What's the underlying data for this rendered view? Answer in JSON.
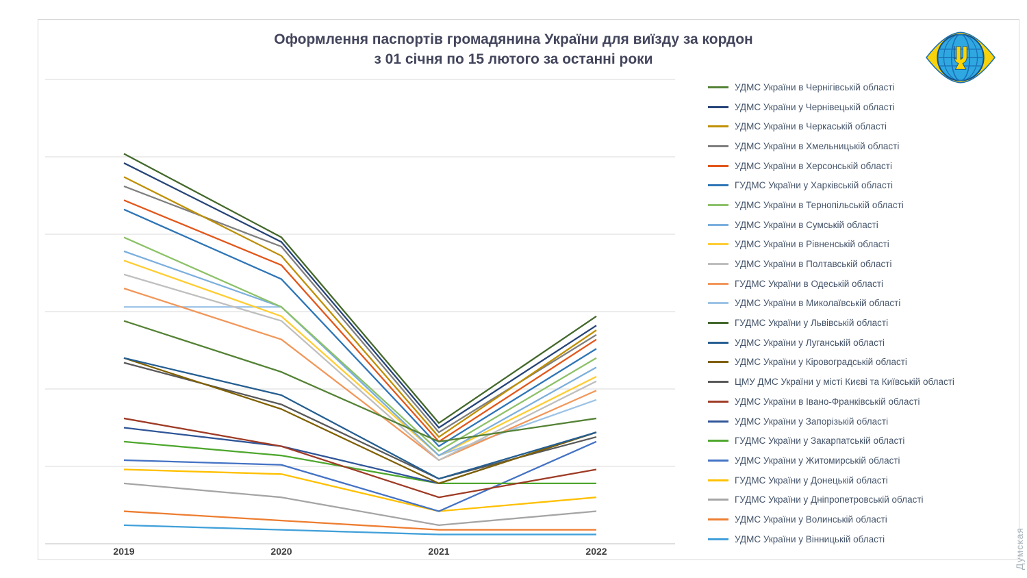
{
  "watermark": "Думская",
  "logo": {
    "description": "emblem of the State Migration Service of Ukraine",
    "colors": {
      "globe": "#2fa8e1",
      "ring": "#f8d20a",
      "lines": "#1b6fb5",
      "trident": "#ffd500"
    }
  },
  "chart_data": {
    "type": "line",
    "title": "Оформлення паспортів громадянина України для виїзду за кордон",
    "subtitle": "з 01 січня по 15 лютого за останні роки",
    "categories": [
      "2019",
      "2020",
      "2021",
      "2022"
    ],
    "ylim": [
      0,
      100
    ],
    "grid": true,
    "gridline_count": 7,
    "y_axis_tick_labels_visible": false,
    "value_scale_note": "y-axis is unlabeled in the source image; values are relative estimates on a 0-100 scale of plot height",
    "legend_position": "right",
    "series": [
      {
        "name": "УДМС України в Чернігівській області",
        "color": "#548235",
        "values": [
          48,
          37,
          22,
          27
        ]
      },
      {
        "name": "УДМС України у Чернівецькій області",
        "color": "#264478",
        "values": [
          82,
          65,
          25,
          47
        ]
      },
      {
        "name": "УДМС України в Черкаській області",
        "color": "#BF8F00",
        "values": [
          79,
          62,
          23,
          46
        ]
      },
      {
        "name": "УДМС України в Хмельницькій області",
        "color": "#7F7F7F",
        "values": [
          77,
          64,
          24,
          45
        ]
      },
      {
        "name": "УДМС України в Херсонській області",
        "color": "#E2571B",
        "values": [
          74,
          60,
          22,
          44
        ]
      },
      {
        "name": "ГУДМС України у Харківській області",
        "color": "#2E75B6",
        "values": [
          72,
          57,
          21,
          42
        ]
      },
      {
        "name": "УДМС України в Тернопільській області",
        "color": "#8CC168",
        "values": [
          66,
          51,
          20,
          40
        ]
      },
      {
        "name": "УДМС України в Сумській області",
        "color": "#7CAFDD",
        "values": [
          63,
          51,
          19,
          38
        ]
      },
      {
        "name": "УДМС України в Рівненській області",
        "color": "#FFCD33",
        "values": [
          61,
          49,
          19,
          36
        ]
      },
      {
        "name": "УДМС України в Полтавській області",
        "color": "#BFBFBF",
        "values": [
          58,
          48,
          18,
          35
        ]
      },
      {
        "name": "ГУДМС України в Одеській області",
        "color": "#F1975A",
        "values": [
          55,
          44,
          18,
          33
        ]
      },
      {
        "name": "УДМС України в Миколаївській області",
        "color": "#9DC3E6",
        "values": [
          51,
          51,
          19,
          31
        ]
      },
      {
        "name": "ГУДМС України у Львівській області",
        "color": "#43682B",
        "values": [
          84,
          66,
          26,
          49
        ]
      },
      {
        "name": "УДМС України у Луганській області",
        "color": "#255E91",
        "values": [
          40,
          32,
          14,
          24
        ]
      },
      {
        "name": "УДМС України у Кіровоградській області",
        "color": "#806000",
        "values": [
          40,
          29,
          13,
          24
        ]
      },
      {
        "name": "ЦМУ ДМС України у місті Києві та Київській області",
        "color": "#595959",
        "values": [
          39,
          30,
          14,
          23
        ]
      },
      {
        "name": "УДМС України в Івано-Франківській області",
        "color": "#9E3B25",
        "values": [
          27,
          21,
          10,
          16
        ]
      },
      {
        "name": "УДМС України у Запорізькій області",
        "color": "#2F5597",
        "values": [
          25,
          21,
          13,
          24
        ]
      },
      {
        "name": "ГУДМС України у Закарпатській області",
        "color": "#4EA72E",
        "values": [
          22,
          19,
          13,
          13
        ]
      },
      {
        "name": "УДМС України у Житомирській області",
        "color": "#4472C4",
        "values": [
          18,
          17,
          7,
          22
        ]
      },
      {
        "name": "ГУДМС України у Донецькій області",
        "color": "#FFC000",
        "values": [
          16,
          15,
          7,
          10
        ]
      },
      {
        "name": "ГУДМС України у Дніпропетровській області",
        "color": "#A5A5A5",
        "values": [
          13,
          10,
          4,
          7
        ]
      },
      {
        "name": "УДМС України у Волинській області",
        "color": "#ED7D31",
        "values": [
          7,
          5,
          3,
          3
        ]
      },
      {
        "name": "УДМС України у Вінницькій області",
        "color": "#41A0D9",
        "values": [
          4,
          3,
          2,
          2
        ]
      }
    ]
  }
}
